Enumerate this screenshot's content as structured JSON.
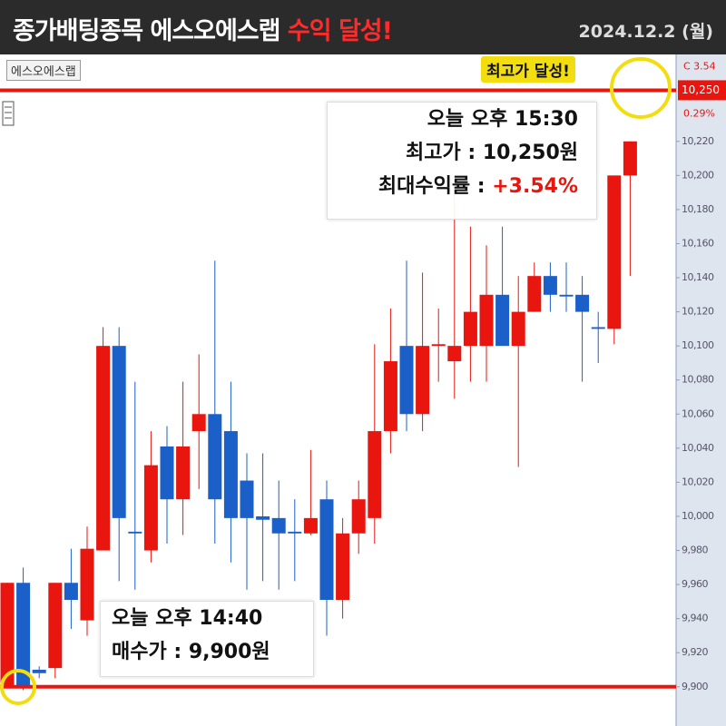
{
  "header": {
    "title": "종가배팅종목 에스오에스랩",
    "highlight": "수익 달성!",
    "date": "2024.12.2 (월)"
  },
  "chart_data": {
    "type": "candlestick",
    "stock_tab": "에스오에스랩",
    "open": [
      9900,
      9961,
      9910,
      9911,
      9961,
      9939,
      9980,
      10100,
      9991,
      9980,
      10041,
      10010,
      10050,
      10060,
      10050,
      10021,
      10000,
      9999,
      9991,
      9990,
      10010,
      9951,
      9990,
      9999,
      10050,
      10100,
      10060,
      10100,
      10091,
      10100,
      10100,
      10130,
      10100,
      10120,
      10141,
      10130,
      10130,
      10111,
      10110,
      10200,
      10249
    ],
    "high": [
      9961,
      9970,
      9912,
      9961,
      9981,
      9994,
      10111,
      10111,
      10079,
      10050,
      10053,
      10079,
      10095,
      10150,
      10079,
      10037,
      10037,
      10021,
      10010,
      10039,
      10021,
      9999,
      10021,
      10101,
      10122,
      10150,
      10143,
      10122,
      10189,
      10170,
      10159,
      10170,
      10141,
      10149,
      10149,
      10149,
      10141,
      10120,
      10200,
      10220,
      10250
    ],
    "low": [
      9900,
      9898,
      9905,
      9905,
      9934,
      9930,
      9980,
      9962,
      9957,
      9973,
      9984,
      9989,
      10016,
      9984,
      9973,
      9957,
      9962,
      9957,
      9962,
      9989,
      9930,
      9940,
      9978,
      9984,
      10037,
      10050,
      10050,
      10079,
      10069,
      10079,
      10079,
      10100,
      10029,
      10120,
      10120,
      10120,
      10079,
      10090,
      10101,
      10141,
      10249
    ],
    "close": [
      9961,
      9900,
      9908,
      9961,
      9951,
      9981,
      10100,
      9999,
      9990,
      10030,
      10010,
      10041,
      10060,
      10010,
      9999,
      9999,
      9998,
      9990,
      9990,
      9999,
      9951,
      9990,
      10010,
      10050,
      10091,
      10060,
      10100,
      10101,
      10100,
      10120,
      10130,
      10100,
      10120,
      10141,
      10130,
      10129,
      10120,
      10110,
      10200,
      10220,
      10250
    ],
    "up_color": "#e8160f",
    "down_color": "#1b5fc8",
    "ylim": [
      9877,
      10271
    ],
    "yticks": [
      {
        "value": 9900,
        "label": "9,900"
      },
      {
        "value": 9920,
        "label": "9,920"
      },
      {
        "value": 9940,
        "label": "9,940"
      },
      {
        "value": 9960,
        "label": "9,960"
      },
      {
        "value": 9980,
        "label": "9,980"
      },
      {
        "value": 10000,
        "label": "10,000"
      },
      {
        "value": 10020,
        "label": "10,020"
      },
      {
        "value": 10040,
        "label": "10,040"
      },
      {
        "value": 10060,
        "label": "10,060"
      },
      {
        "value": 10080,
        "label": "10,080"
      },
      {
        "value": 10100,
        "label": "10,100"
      },
      {
        "value": 10120,
        "label": "10,120"
      },
      {
        "value": 10140,
        "label": "10,140"
      },
      {
        "value": 10160,
        "label": "10,160"
      },
      {
        "value": 10180,
        "label": "10,180"
      },
      {
        "value": 10200,
        "label": "10,200"
      },
      {
        "value": 10220,
        "label": "10,220"
      }
    ],
    "hlines": [
      10250,
      9900
    ],
    "axis_badges": {
      "top": "C 3.54",
      "price": {
        "value": 10250,
        "label": "10,250"
      },
      "bottom": "0.29%"
    },
    "badge": "최고가 달성!",
    "sell_note": {
      "time": "오늘 오후 15:30",
      "price": "최고가 : 10,250원",
      "return_label": "최대수익률 : ",
      "return_value": "+3.54%"
    },
    "buy_note": {
      "time": "오늘 오후 14:40",
      "price": "매수가 : 9,900원"
    }
  }
}
